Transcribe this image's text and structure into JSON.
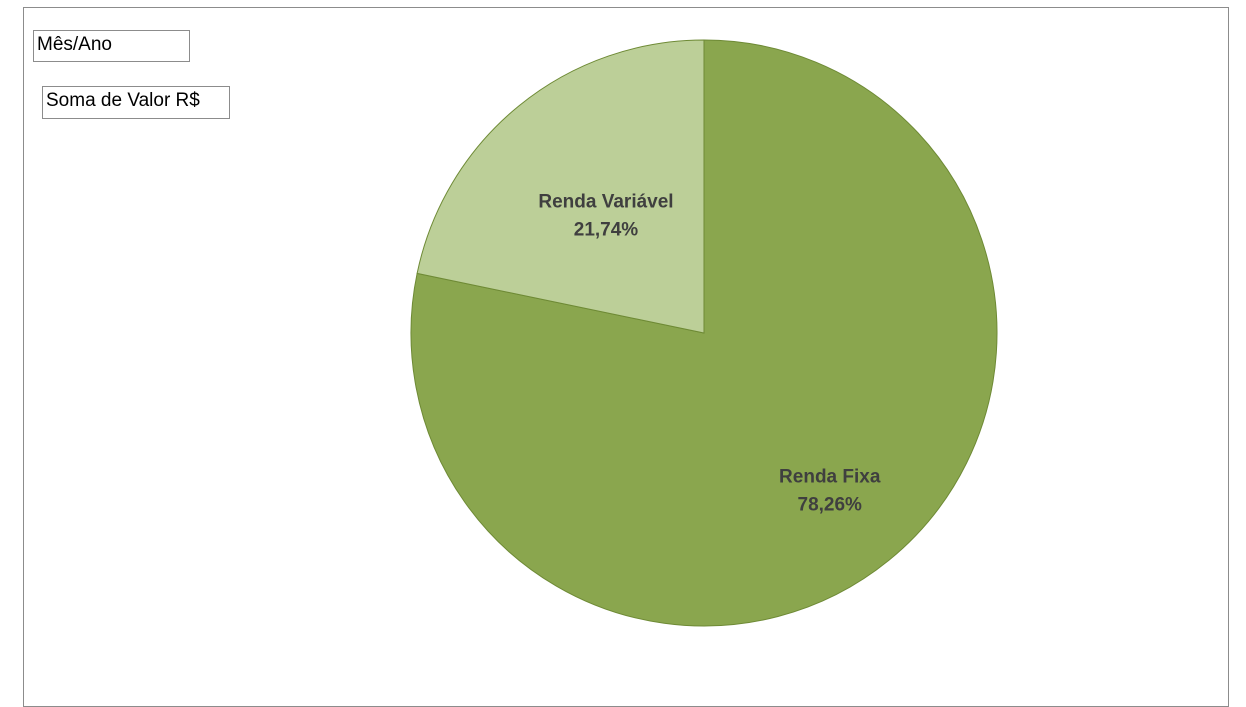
{
  "pivot_fields": {
    "filter": "Mês/Ano",
    "values": "Soma de Valor R$"
  },
  "colors": {
    "renda_fixa": "#8aa64e",
    "renda_variavel": "#bccf98",
    "slice_border": "#6e8a35",
    "label": "#3f3f3f"
  },
  "chart_data": {
    "type": "pie",
    "title": "",
    "slices": [
      {
        "name": "Renda Fixa",
        "value": 78.26,
        "label": "78,26%"
      },
      {
        "name": "Renda Variável",
        "value": 21.74,
        "label": "21,74%"
      }
    ]
  }
}
